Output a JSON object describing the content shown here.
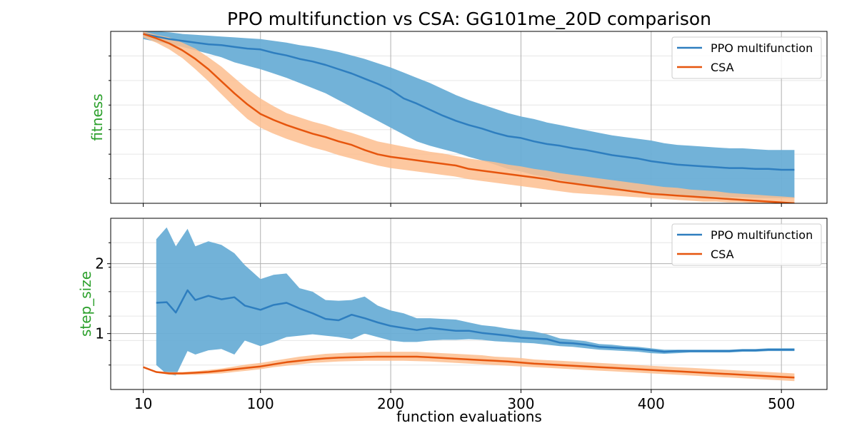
{
  "title": "PPO multifunction vs CSA: GG101me_20D comparison",
  "xlabel": "function evaluations",
  "colors": {
    "ppo_line": "#2e7ebf",
    "ppo_band": "#6aaed6",
    "csa_line": "#e6550d",
    "csa_band": "#fdbe8f",
    "ylabel": "#2ca02c"
  },
  "chart_data": [
    {
      "type": "line",
      "ylabel": "fitness",
      "xlim": [
        -15,
        535
      ],
      "ylim": [
        0,
        1
      ],
      "xticks": [
        10,
        100,
        200,
        300,
        400,
        500
      ],
      "xticklabels": [],
      "yticks": [],
      "grid": true,
      "legend": "top-right",
      "series": [
        {
          "name": "PPO multifunction",
          "x": [
            10,
            20,
            30,
            40,
            50,
            60,
            70,
            80,
            90,
            100,
            110,
            120,
            130,
            140,
            150,
            160,
            170,
            180,
            190,
            200,
            210,
            220,
            230,
            240,
            250,
            260,
            270,
            280,
            290,
            300,
            310,
            320,
            330,
            340,
            350,
            360,
            370,
            380,
            390,
            400,
            410,
            420,
            430,
            440,
            450,
            460,
            470,
            480,
            490,
            500,
            510
          ],
          "y": [
            0.985,
            0.97,
            0.955,
            0.945,
            0.935,
            0.925,
            0.92,
            0.91,
            0.9,
            0.895,
            0.875,
            0.86,
            0.84,
            0.825,
            0.805,
            0.78,
            0.755,
            0.725,
            0.695,
            0.66,
            0.61,
            0.58,
            0.545,
            0.51,
            0.48,
            0.455,
            0.435,
            0.41,
            0.39,
            0.38,
            0.36,
            0.345,
            0.335,
            0.32,
            0.31,
            0.295,
            0.28,
            0.27,
            0.26,
            0.245,
            0.235,
            0.225,
            0.22,
            0.215,
            0.21,
            0.205,
            0.205,
            0.2,
            0.2,
            0.195,
            0.195
          ],
          "lower": [
            0.955,
            0.94,
            0.925,
            0.91,
            0.89,
            0.87,
            0.85,
            0.82,
            0.8,
            0.78,
            0.755,
            0.73,
            0.7,
            0.67,
            0.64,
            0.6,
            0.56,
            0.52,
            0.48,
            0.44,
            0.4,
            0.36,
            0.335,
            0.315,
            0.295,
            0.27,
            0.25,
            0.225,
            0.2,
            0.185,
            0.165,
            0.15,
            0.135,
            0.12,
            0.11,
            0.095,
            0.085,
            0.075,
            0.07,
            0.06,
            0.055,
            0.05,
            0.045,
            0.04,
            0.04,
            0.035,
            0.035,
            0.03,
            0.03,
            0.03,
            0.03
          ],
          "upper": [
            1.005,
            1.0,
            0.995,
            0.985,
            0.98,
            0.975,
            0.97,
            0.965,
            0.96,
            0.955,
            0.945,
            0.935,
            0.92,
            0.91,
            0.895,
            0.88,
            0.86,
            0.84,
            0.815,
            0.79,
            0.76,
            0.73,
            0.7,
            0.665,
            0.63,
            0.6,
            0.575,
            0.55,
            0.525,
            0.505,
            0.49,
            0.47,
            0.455,
            0.44,
            0.425,
            0.41,
            0.395,
            0.385,
            0.375,
            0.365,
            0.35,
            0.34,
            0.335,
            0.33,
            0.325,
            0.32,
            0.32,
            0.315,
            0.31,
            0.31,
            0.31
          ]
        },
        {
          "name": "CSA",
          "x": [
            10,
            20,
            30,
            40,
            50,
            60,
            70,
            80,
            90,
            100,
            110,
            120,
            130,
            140,
            150,
            160,
            170,
            180,
            190,
            200,
            210,
            220,
            230,
            240,
            250,
            260,
            270,
            280,
            290,
            300,
            310,
            320,
            330,
            340,
            350,
            360,
            370,
            380,
            390,
            400,
            410,
            420,
            430,
            440,
            450,
            460,
            470,
            480,
            490,
            500,
            510
          ],
          "y": [
            0.985,
            0.96,
            0.93,
            0.89,
            0.84,
            0.78,
            0.71,
            0.64,
            0.575,
            0.52,
            0.485,
            0.455,
            0.43,
            0.405,
            0.385,
            0.36,
            0.34,
            0.31,
            0.285,
            0.27,
            0.26,
            0.25,
            0.24,
            0.23,
            0.22,
            0.2,
            0.19,
            0.18,
            0.17,
            0.16,
            0.15,
            0.14,
            0.125,
            0.115,
            0.105,
            0.095,
            0.085,
            0.075,
            0.065,
            0.055,
            0.05,
            0.045,
            0.04,
            0.035,
            0.03,
            0.025,
            0.02,
            0.015,
            0.01,
            0.005,
            0.0
          ],
          "lower": [
            0.965,
            0.935,
            0.895,
            0.845,
            0.78,
            0.71,
            0.635,
            0.56,
            0.49,
            0.44,
            0.405,
            0.375,
            0.35,
            0.325,
            0.305,
            0.28,
            0.26,
            0.24,
            0.22,
            0.205,
            0.195,
            0.185,
            0.175,
            0.165,
            0.155,
            0.14,
            0.13,
            0.12,
            0.11,
            0.1,
            0.09,
            0.08,
            0.07,
            0.06,
            0.055,
            0.05,
            0.045,
            0.04,
            0.035,
            0.03,
            0.025,
            0.02,
            0.015,
            0.01,
            0.01,
            0.005,
            0.005,
            0.0,
            0.0,
            -0.005,
            -0.01
          ],
          "upper": [
            1.0,
            0.98,
            0.965,
            0.935,
            0.9,
            0.85,
            0.795,
            0.73,
            0.665,
            0.61,
            0.565,
            0.525,
            0.5,
            0.475,
            0.455,
            0.43,
            0.41,
            0.385,
            0.36,
            0.345,
            0.33,
            0.315,
            0.3,
            0.29,
            0.275,
            0.26,
            0.25,
            0.24,
            0.225,
            0.215,
            0.2,
            0.19,
            0.175,
            0.165,
            0.155,
            0.145,
            0.135,
            0.125,
            0.115,
            0.105,
            0.095,
            0.09,
            0.08,
            0.075,
            0.07,
            0.06,
            0.055,
            0.05,
            0.045,
            0.04,
            0.035
          ]
        }
      ]
    },
    {
      "type": "line",
      "ylabel": "step_size",
      "xlim": [
        -15,
        535
      ],
      "ylim": [
        0.2,
        2.65
      ],
      "xticks": [
        10,
        100,
        200,
        300,
        400,
        500
      ],
      "xticklabels": [
        "10",
        "100",
        "200",
        "300",
        "400",
        "500"
      ],
      "yticks": [
        1,
        2
      ],
      "yticklabels": [
        "1",
        "2"
      ],
      "grid": true,
      "legend": "top-right",
      "series": [
        {
          "name": "PPO multifunction",
          "x": [
            20,
            28,
            35,
            44,
            50,
            60,
            70,
            80,
            88,
            100,
            110,
            120,
            130,
            140,
            150,
            160,
            170,
            180,
            190,
            200,
            210,
            220,
            230,
            240,
            250,
            260,
            270,
            280,
            290,
            300,
            310,
            320,
            330,
            340,
            350,
            360,
            370,
            380,
            390,
            400,
            410,
            420,
            430,
            440,
            450,
            460,
            470,
            480,
            490,
            500,
            510
          ],
          "y": [
            1.44,
            1.45,
            1.3,
            1.62,
            1.48,
            1.54,
            1.49,
            1.52,
            1.4,
            1.34,
            1.41,
            1.44,
            1.36,
            1.29,
            1.21,
            1.19,
            1.27,
            1.22,
            1.16,
            1.11,
            1.08,
            1.05,
            1.08,
            1.06,
            1.04,
            1.04,
            1.01,
            0.99,
            0.97,
            0.94,
            0.93,
            0.92,
            0.87,
            0.86,
            0.84,
            0.81,
            0.8,
            0.79,
            0.78,
            0.76,
            0.74,
            0.75,
            0.75,
            0.75,
            0.75,
            0.75,
            0.76,
            0.76,
            0.77,
            0.77,
            0.77
          ],
          "lower": [
            0.55,
            0.42,
            0.4,
            0.75,
            0.7,
            0.76,
            0.78,
            0.7,
            0.9,
            0.82,
            0.88,
            0.95,
            0.97,
            0.99,
            0.97,
            0.95,
            0.92,
            1.0,
            0.95,
            0.9,
            0.88,
            0.88,
            0.9,
            0.91,
            0.91,
            0.92,
            0.91,
            0.89,
            0.88,
            0.87,
            0.86,
            0.84,
            0.82,
            0.81,
            0.79,
            0.77,
            0.76,
            0.75,
            0.74,
            0.72,
            0.71,
            0.72,
            0.73,
            0.73,
            0.73,
            0.73,
            0.74,
            0.74,
            0.75,
            0.75,
            0.75
          ],
          "upper": [
            2.35,
            2.52,
            2.25,
            2.5,
            2.25,
            2.32,
            2.27,
            2.15,
            1.98,
            1.78,
            1.84,
            1.86,
            1.65,
            1.6,
            1.48,
            1.47,
            1.48,
            1.53,
            1.4,
            1.33,
            1.29,
            1.22,
            1.22,
            1.21,
            1.2,
            1.16,
            1.12,
            1.1,
            1.07,
            1.05,
            1.03,
            0.99,
            0.93,
            0.91,
            0.89,
            0.85,
            0.84,
            0.82,
            0.81,
            0.79,
            0.77,
            0.77,
            0.77,
            0.77,
            0.77,
            0.77,
            0.78,
            0.78,
            0.79,
            0.79,
            0.79
          ]
        },
        {
          "name": "CSA",
          "x": [
            10,
            20,
            30,
            40,
            50,
            60,
            70,
            80,
            90,
            100,
            110,
            120,
            130,
            140,
            150,
            160,
            170,
            180,
            190,
            200,
            210,
            220,
            230,
            240,
            250,
            260,
            270,
            280,
            290,
            300,
            310,
            320,
            330,
            340,
            350,
            360,
            370,
            380,
            390,
            400,
            410,
            420,
            430,
            440,
            450,
            460,
            470,
            480,
            490,
            500,
            510
          ],
          "y": [
            0.52,
            0.45,
            0.43,
            0.43,
            0.44,
            0.45,
            0.47,
            0.49,
            0.51,
            0.53,
            0.56,
            0.59,
            0.61,
            0.63,
            0.645,
            0.655,
            0.66,
            0.665,
            0.67,
            0.67,
            0.67,
            0.67,
            0.66,
            0.65,
            0.64,
            0.63,
            0.62,
            0.61,
            0.6,
            0.585,
            0.57,
            0.56,
            0.55,
            0.54,
            0.53,
            0.52,
            0.51,
            0.5,
            0.49,
            0.48,
            0.47,
            0.46,
            0.45,
            0.44,
            0.43,
            0.42,
            0.41,
            0.4,
            0.39,
            0.38,
            0.37
          ],
          "lower": [
            0.52,
            0.44,
            0.41,
            0.41,
            0.41,
            0.42,
            0.43,
            0.45,
            0.47,
            0.49,
            0.52,
            0.54,
            0.56,
            0.58,
            0.59,
            0.6,
            0.605,
            0.61,
            0.61,
            0.61,
            0.61,
            0.605,
            0.6,
            0.59,
            0.58,
            0.57,
            0.56,
            0.55,
            0.54,
            0.53,
            0.52,
            0.51,
            0.5,
            0.49,
            0.48,
            0.47,
            0.46,
            0.45,
            0.44,
            0.43,
            0.42,
            0.41,
            0.4,
            0.39,
            0.38,
            0.37,
            0.36,
            0.35,
            0.34,
            0.33,
            0.32
          ],
          "upper": [
            0.52,
            0.46,
            0.45,
            0.45,
            0.46,
            0.48,
            0.5,
            0.53,
            0.56,
            0.58,
            0.61,
            0.64,
            0.67,
            0.69,
            0.71,
            0.72,
            0.73,
            0.73,
            0.74,
            0.74,
            0.74,
            0.74,
            0.73,
            0.72,
            0.71,
            0.7,
            0.69,
            0.67,
            0.66,
            0.65,
            0.63,
            0.62,
            0.61,
            0.6,
            0.59,
            0.58,
            0.57,
            0.56,
            0.55,
            0.54,
            0.53,
            0.52,
            0.51,
            0.5,
            0.49,
            0.48,
            0.47,
            0.46,
            0.45,
            0.44,
            0.43
          ]
        }
      ]
    }
  ]
}
